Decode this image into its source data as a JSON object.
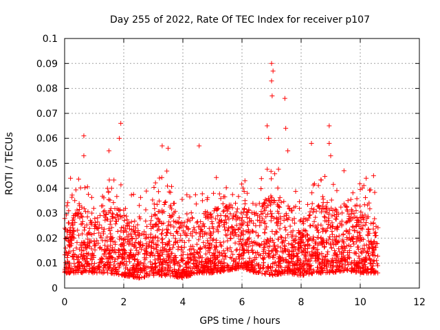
{
  "chart_data": {
    "type": "scatter",
    "title": "Day 255 of 2022, Rate Of TEC Index for receiver p107",
    "xlabel": "GPS time / hours",
    "ylabel": "ROTI / TECUs",
    "xlim": [
      0,
      12
    ],
    "ylim": [
      0,
      0.1
    ],
    "xticks": [
      0,
      2,
      4,
      6,
      8,
      10,
      12
    ],
    "xtick_labels": [
      "0",
      "2",
      "4",
      "6",
      "8",
      "10",
      "12"
    ],
    "yticks": [
      0,
      0.01,
      0.02,
      0.03,
      0.04,
      0.05,
      0.06,
      0.07,
      0.08,
      0.09,
      0.1
    ],
    "ytick_labels": [
      "0",
      "0.01",
      "0.02",
      "0.03",
      "0.04",
      "0.05",
      "0.06",
      "0.07",
      "0.08",
      "0.09",
      "0.1"
    ],
    "grid": true,
    "marker": "+",
    "series_color": "#ff0000",
    "x_data_range": [
      0,
      10.6
    ],
    "notable_points": [
      {
        "x": 0.65,
        "y": 0.061
      },
      {
        "x": 0.65,
        "y": 0.053
      },
      {
        "x": 1.9,
        "y": 0.066
      },
      {
        "x": 1.85,
        "y": 0.06
      },
      {
        "x": 1.5,
        "y": 0.055
      },
      {
        "x": 3.3,
        "y": 0.057
      },
      {
        "x": 3.5,
        "y": 0.056
      },
      {
        "x": 4.55,
        "y": 0.057
      },
      {
        "x": 7.0,
        "y": 0.09
      },
      {
        "x": 7.05,
        "y": 0.087
      },
      {
        "x": 7.0,
        "y": 0.083
      },
      {
        "x": 7.02,
        "y": 0.077
      },
      {
        "x": 7.45,
        "y": 0.076
      },
      {
        "x": 7.48,
        "y": 0.064
      },
      {
        "x": 6.85,
        "y": 0.065
      },
      {
        "x": 6.9,
        "y": 0.06
      },
      {
        "x": 7.55,
        "y": 0.055
      },
      {
        "x": 8.95,
        "y": 0.065
      },
      {
        "x": 8.95,
        "y": 0.058
      },
      {
        "x": 9.0,
        "y": 0.053
      },
      {
        "x": 8.35,
        "y": 0.058
      },
      {
        "x": 9.45,
        "y": 0.047
      },
      {
        "x": 10.45,
        "y": 0.045
      },
      {
        "x": 10.2,
        "y": 0.044
      },
      {
        "x": 0.2,
        "y": 0.044
      },
      {
        "x": 6.1,
        "y": 0.043
      }
    ],
    "envelope": [
      {
        "x": 0.0,
        "low": 0.006,
        "high": 0.024
      },
      {
        "x": 0.5,
        "low": 0.006,
        "high": 0.034
      },
      {
        "x": 1.0,
        "low": 0.006,
        "high": 0.03
      },
      {
        "x": 1.5,
        "low": 0.006,
        "high": 0.036
      },
      {
        "x": 2.0,
        "low": 0.005,
        "high": 0.03
      },
      {
        "x": 2.5,
        "low": 0.004,
        "high": 0.024
      },
      {
        "x": 3.0,
        "low": 0.005,
        "high": 0.03
      },
      {
        "x": 3.5,
        "low": 0.005,
        "high": 0.036
      },
      {
        "x": 4.0,
        "low": 0.004,
        "high": 0.026
      },
      {
        "x": 4.5,
        "low": 0.006,
        "high": 0.03
      },
      {
        "x": 5.0,
        "low": 0.006,
        "high": 0.032
      },
      {
        "x": 5.5,
        "low": 0.007,
        "high": 0.034
      },
      {
        "x": 6.0,
        "low": 0.008,
        "high": 0.03
      },
      {
        "x": 6.5,
        "low": 0.006,
        "high": 0.034
      },
      {
        "x": 7.0,
        "low": 0.005,
        "high": 0.04
      },
      {
        "x": 7.5,
        "low": 0.006,
        "high": 0.034
      },
      {
        "x": 8.0,
        "low": 0.005,
        "high": 0.028
      },
      {
        "x": 8.5,
        "low": 0.006,
        "high": 0.034
      },
      {
        "x": 9.0,
        "low": 0.006,
        "high": 0.032
      },
      {
        "x": 9.5,
        "low": 0.007,
        "high": 0.034
      },
      {
        "x": 10.0,
        "low": 0.006,
        "high": 0.03
      },
      {
        "x": 10.6,
        "low": 0.006,
        "high": 0.028
      }
    ]
  }
}
